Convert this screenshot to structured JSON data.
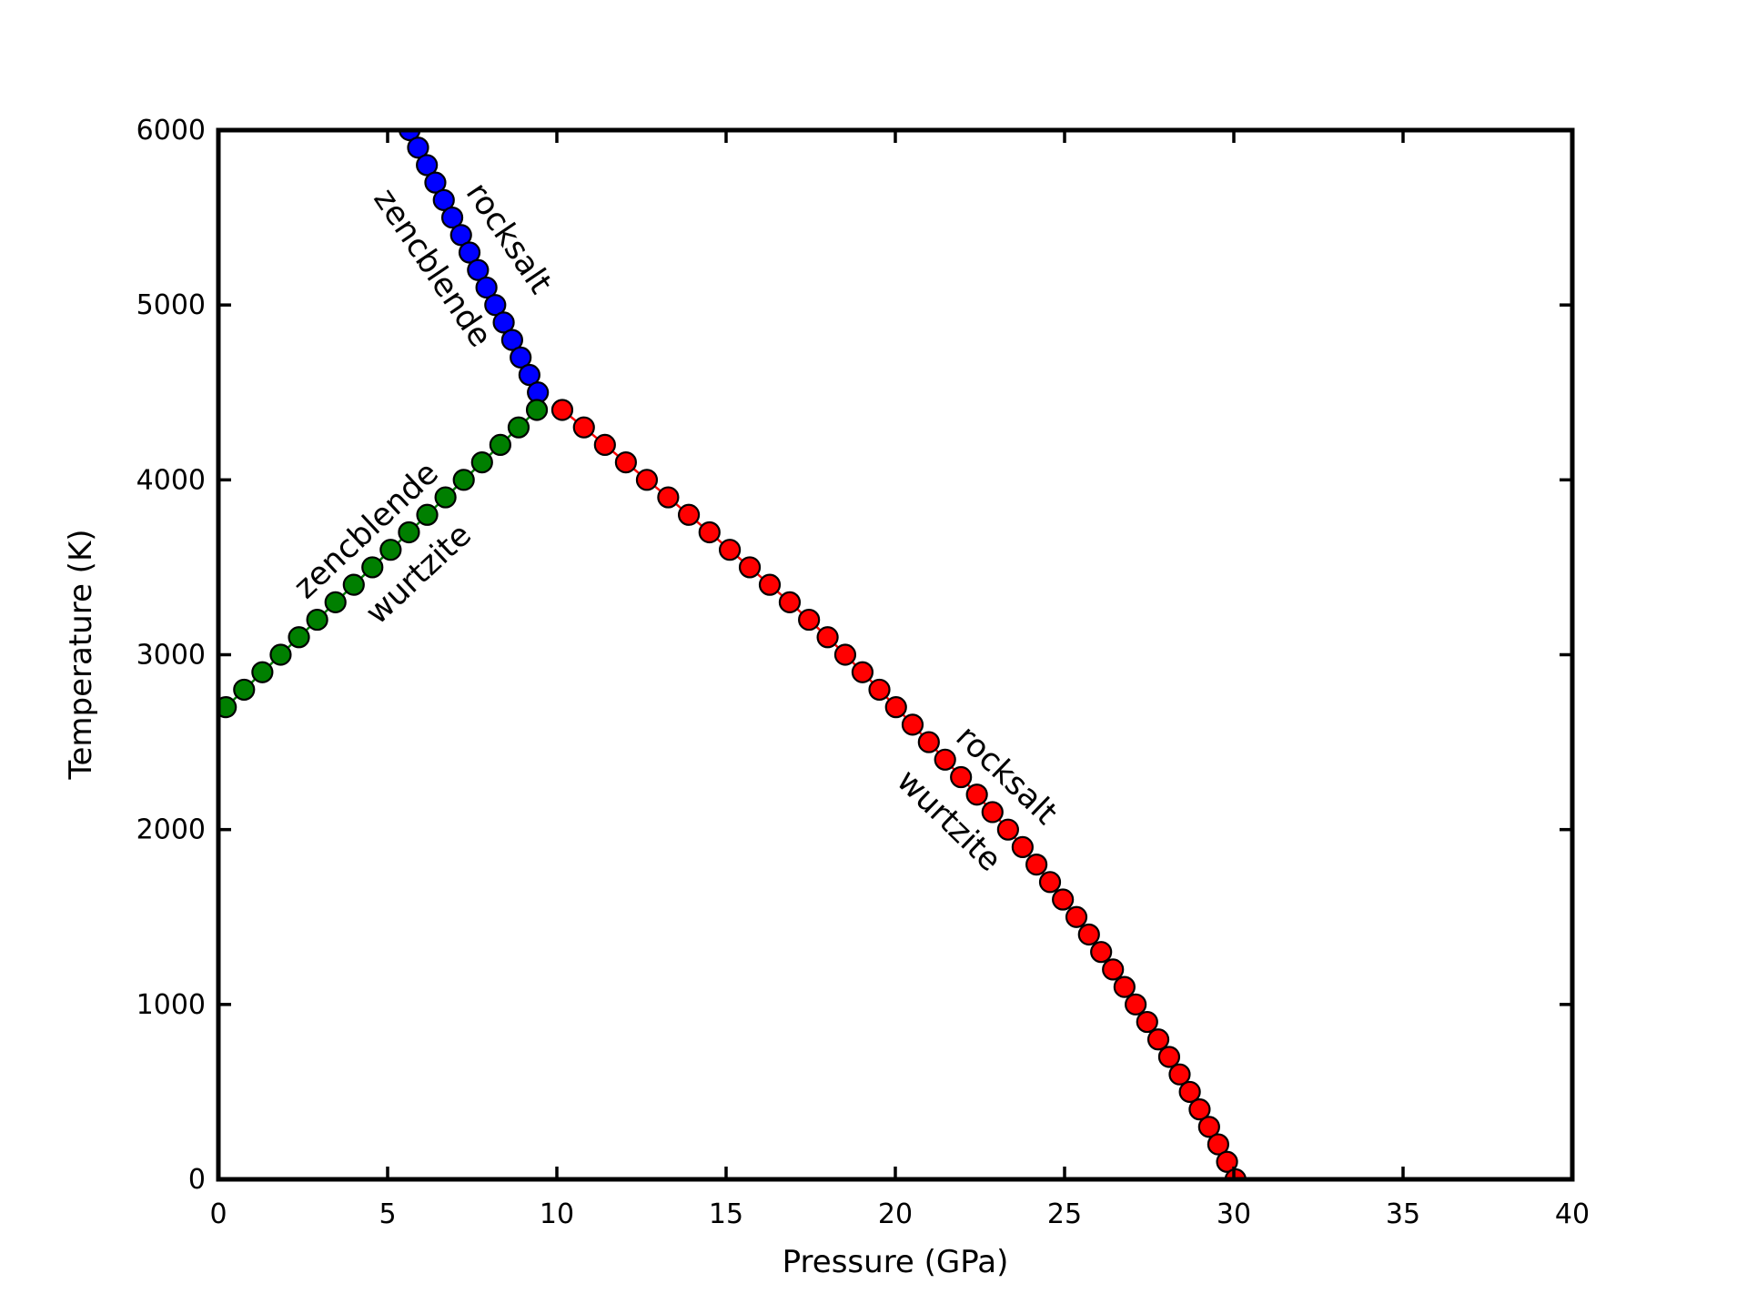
{
  "figure": {
    "background": "#ffffff",
    "axis_color": "#000000"
  },
  "chart_data": {
    "type": "line",
    "title": "",
    "xlabel": "Pressure (GPa)",
    "ylabel": "Temperature (K)",
    "xlim": [
      0,
      40
    ],
    "ylim": [
      0,
      6000
    ],
    "xticks": [
      0,
      5,
      10,
      15,
      20,
      25,
      30,
      35,
      40
    ],
    "yticks": [
      0,
      1000,
      2000,
      3000,
      4000,
      5000,
      6000
    ],
    "grid": false,
    "legend": "none",
    "tick_direction": "in",
    "marker": "circle",
    "marker_edge_color": "#000000",
    "series": [
      {
        "name": "rocksalt-zencblende-boundary",
        "color": "#0000ff",
        "points": [
          [
            5.65,
            6000
          ],
          [
            5.9,
            5900
          ],
          [
            6.16,
            5800
          ],
          [
            6.41,
            5700
          ],
          [
            6.66,
            5600
          ],
          [
            6.91,
            5500
          ],
          [
            7.17,
            5400
          ],
          [
            7.42,
            5300
          ],
          [
            7.67,
            5200
          ],
          [
            7.92,
            5100
          ],
          [
            8.18,
            5000
          ],
          [
            8.43,
            4900
          ],
          [
            8.68,
            4800
          ],
          [
            8.93,
            4700
          ],
          [
            9.19,
            4600
          ],
          [
            9.44,
            4500
          ]
        ]
      },
      {
        "name": "zencblende-wurtzite-boundary",
        "color": "#007f00",
        "points": [
          [
            0.22,
            2700
          ],
          [
            0.76,
            2800
          ],
          [
            1.3,
            2900
          ],
          [
            1.84,
            3000
          ],
          [
            2.38,
            3100
          ],
          [
            2.92,
            3200
          ],
          [
            3.46,
            3300
          ],
          [
            4.0,
            3400
          ],
          [
            4.55,
            3500
          ],
          [
            5.09,
            3600
          ],
          [
            5.63,
            3700
          ],
          [
            6.17,
            3800
          ],
          [
            6.71,
            3900
          ],
          [
            7.25,
            4000
          ],
          [
            7.79,
            4100
          ],
          [
            8.33,
            4200
          ],
          [
            8.87,
            4300
          ],
          [
            9.41,
            4400
          ]
        ]
      },
      {
        "name": "rocksalt-wurtzite-boundary",
        "color": "#ff0000",
        "points": [
          [
            10.16,
            4400
          ],
          [
            10.8,
            4300
          ],
          [
            11.42,
            4200
          ],
          [
            12.04,
            4100
          ],
          [
            12.66,
            4000
          ],
          [
            13.29,
            3900
          ],
          [
            13.9,
            3800
          ],
          [
            14.51,
            3700
          ],
          [
            15.11,
            3600
          ],
          [
            15.7,
            3500
          ],
          [
            16.29,
            3400
          ],
          [
            16.88,
            3300
          ],
          [
            17.45,
            3200
          ],
          [
            18.0,
            3100
          ],
          [
            18.52,
            3000
          ],
          [
            19.03,
            2900
          ],
          [
            19.53,
            2800
          ],
          [
            20.02,
            2700
          ],
          [
            20.51,
            2600
          ],
          [
            20.99,
            2500
          ],
          [
            21.47,
            2400
          ],
          [
            21.94,
            2300
          ],
          [
            22.41,
            2200
          ],
          [
            22.87,
            2100
          ],
          [
            23.33,
            2000
          ],
          [
            23.76,
            1900
          ],
          [
            24.17,
            1800
          ],
          [
            24.57,
            1700
          ],
          [
            24.95,
            1600
          ],
          [
            25.35,
            1500
          ],
          [
            25.72,
            1400
          ],
          [
            26.08,
            1300
          ],
          [
            26.43,
            1200
          ],
          [
            26.77,
            1100
          ],
          [
            27.1,
            1000
          ],
          [
            27.44,
            900
          ],
          [
            27.77,
            800
          ],
          [
            28.09,
            700
          ],
          [
            28.4,
            600
          ],
          [
            28.7,
            500
          ],
          [
            28.99,
            400
          ],
          [
            29.27,
            300
          ],
          [
            29.54,
            200
          ],
          [
            29.8,
            100
          ],
          [
            30.05,
            0
          ]
        ]
      }
    ],
    "annotations": [
      {
        "text": "rocksalt",
        "x": 8.6,
        "y": 5385,
        "rotation": 56,
        "color": "#000000"
      },
      {
        "text": "zencblende",
        "x": 6.35,
        "y": 5215,
        "rotation": 56,
        "color": "#000000"
      },
      {
        "text": "zencblende",
        "x": 4.35,
        "y": 3715,
        "rotation": -43,
        "color": "#000000"
      },
      {
        "text": "wurtzite",
        "x": 5.9,
        "y": 3465,
        "rotation": -43,
        "color": "#000000"
      },
      {
        "text": "rocksalt",
        "x": 23.3,
        "y": 2315,
        "rotation": 44,
        "color": "#000000"
      },
      {
        "text": "wurtzite",
        "x": 21.6,
        "y": 2055,
        "rotation": 44,
        "color": "#000000"
      }
    ]
  }
}
